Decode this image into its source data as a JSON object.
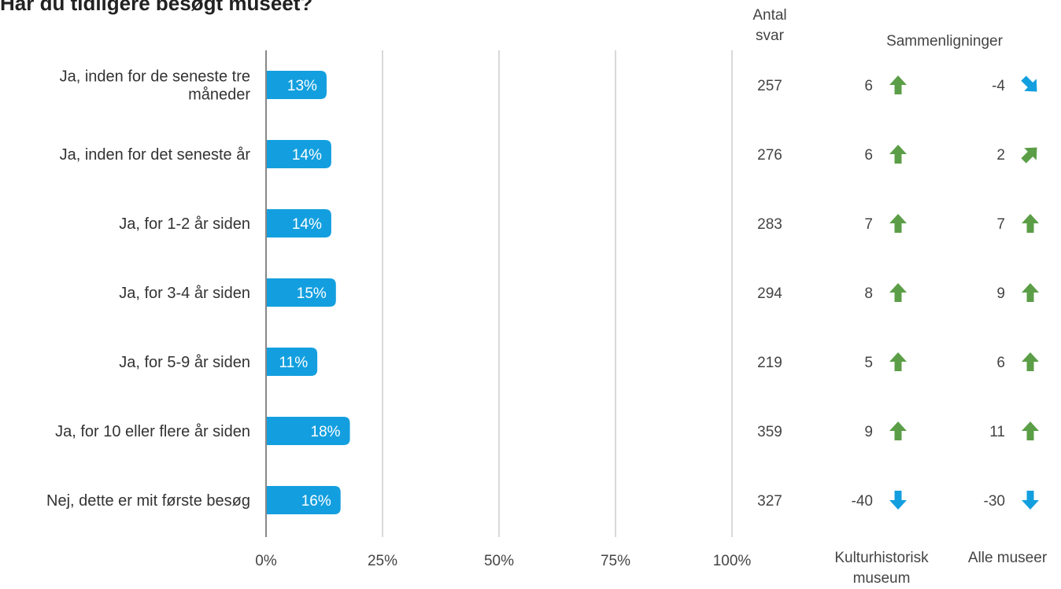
{
  "title": "Har du tidligere besøgt museet?",
  "headers": {
    "count_line1": "Antal",
    "count_line2": "svar",
    "comparisons": "Sammenligninger",
    "comp1_line1": "Kulturhistorisk",
    "comp1_line2": "museum",
    "comp2": "Alle museer"
  },
  "colors": {
    "bar": "#139FDF",
    "up": "#5B9E47",
    "down": "#139FDF",
    "grid": "#b3b3b3",
    "axis": "#888888"
  },
  "chart_data": {
    "type": "bar",
    "orientation": "horizontal",
    "title": "Har du tidligere besøgt museet?",
    "categories": [
      "Ja, inden for de seneste tre måneder",
      "Ja, inden for det seneste år",
      "Ja, for 1-2 år siden",
      "Ja, for 3-4 år siden",
      "Ja, for 5-9 år siden",
      "Ja, for 10 eller flere år siden",
      "Nej, dette er mit første besøg"
    ],
    "category_lines": [
      [
        "Ja, inden for de seneste tre",
        "måneder"
      ],
      [
        "Ja, inden for det seneste år"
      ],
      [
        "Ja, for 1-2 år siden"
      ],
      [
        "Ja, for 3-4 år siden"
      ],
      [
        "Ja, for 5-9 år siden"
      ],
      [
        "Ja, for 10 eller flere år siden"
      ],
      [
        "Nej, dette er mit første besøg"
      ]
    ],
    "values": [
      13,
      14,
      14,
      15,
      11,
      18,
      16
    ],
    "value_labels": [
      "13%",
      "14%",
      "14%",
      "15%",
      "11%",
      "18%",
      "16%"
    ],
    "xlim": [
      0,
      100
    ],
    "xticks": [
      0,
      25,
      50,
      75,
      100
    ],
    "xtick_labels": [
      "0%",
      "25%",
      "50%",
      "75%",
      "100%"
    ],
    "grid": true,
    "count_values": [
      257,
      276,
      283,
      294,
      219,
      359,
      327
    ],
    "comparison_kulturhistorisk": [
      6,
      6,
      7,
      8,
      5,
      9,
      -40
    ],
    "comparison_kulturhistorisk_arrows": [
      "up",
      "up",
      "up",
      "up",
      "up",
      "up",
      "down"
    ],
    "comparison_alle": [
      -4,
      2,
      7,
      9,
      6,
      11,
      -30
    ],
    "comparison_alle_arrows": [
      "down-right",
      "up-right",
      "up",
      "up",
      "up",
      "up",
      "down"
    ]
  }
}
